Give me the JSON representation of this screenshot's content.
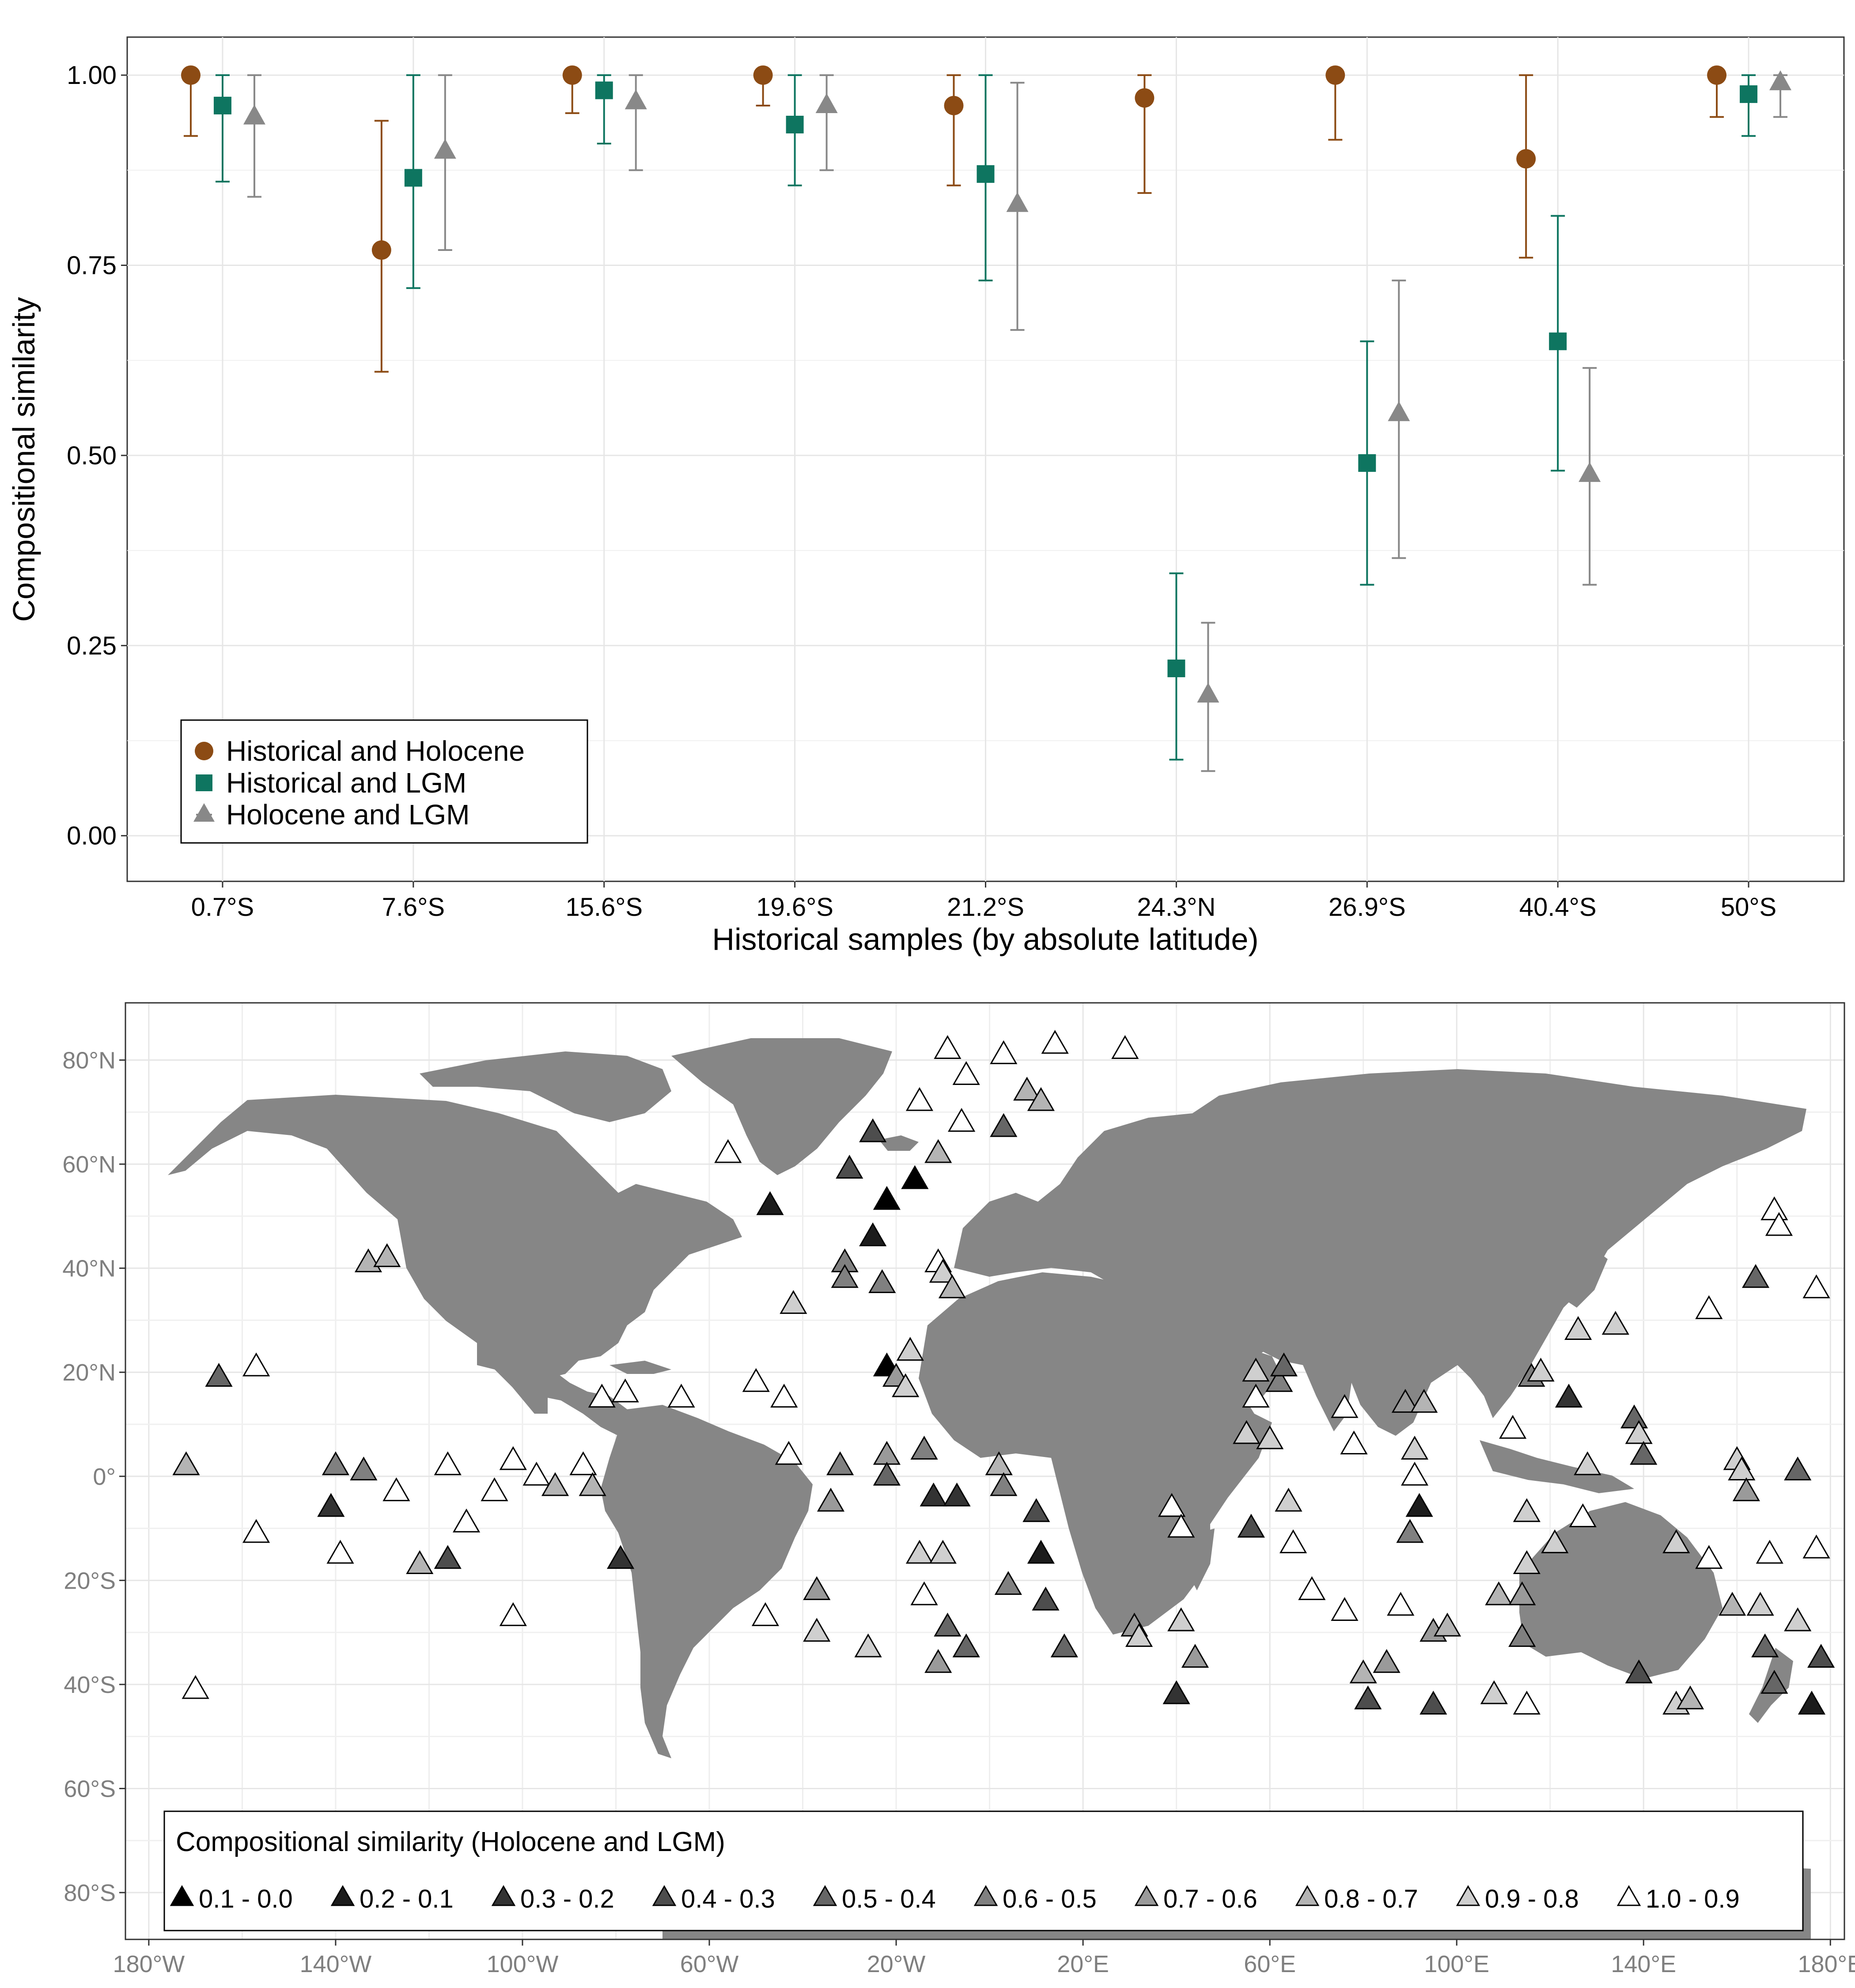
{
  "chart_data": [
    {
      "type": "scatter",
      "subtype": "point-range",
      "xlabel": "Historical samples (by absolute latitude)",
      "ylabel": "Compositional similarity",
      "categories": [
        "0.7°S",
        "7.6°S",
        "15.6°S",
        "19.6°S",
        "21.2°S",
        "24.3°N",
        "26.9°S",
        "40.4°S",
        "50°S"
      ],
      "ylim": [
        -0.06,
        1.05
      ],
      "yticks": [
        "0.00",
        "0.25",
        "0.50",
        "0.75",
        "1.00"
      ],
      "grid": true,
      "legend_position": "bottom-left",
      "series": [
        {
          "name": "Historical and Holocene",
          "marker": "circle",
          "color": "#8c4b14",
          "values": [
            1.0,
            0.77,
            1.0,
            1.0,
            0.96,
            0.97,
            1.0,
            0.89,
            1.0
          ],
          "lower": [
            0.92,
            0.61,
            0.95,
            0.96,
            0.855,
            0.845,
            0.915,
            0.76,
            0.945
          ],
          "upper": [
            1.0,
            0.94,
            1.0,
            1.0,
            1.0,
            1.0,
            1.0,
            1.0,
            1.0
          ]
        },
        {
          "name": "Historical and LGM",
          "marker": "square",
          "color": "#0e7560",
          "values": [
            0.96,
            0.865,
            0.98,
            0.935,
            0.87,
            0.22,
            0.49,
            0.65,
            0.975
          ],
          "lower": [
            0.86,
            0.72,
            0.91,
            0.855,
            0.73,
            0.1,
            0.33,
            0.48,
            0.92
          ],
          "upper": [
            1.0,
            1.0,
            1.0,
            1.0,
            1.0,
            0.345,
            0.65,
            0.815,
            1.0
          ]
        },
        {
          "name": "Holocene and LGM",
          "marker": "triangle",
          "color": "#888888",
          "values": [
            0.945,
            0.9,
            0.965,
            0.96,
            0.83,
            0.185,
            0.555,
            0.475,
            0.99
          ],
          "lower": [
            0.84,
            0.77,
            0.875,
            0.875,
            0.665,
            0.085,
            0.365,
            0.33,
            0.945
          ],
          "upper": [
            1.0,
            1.0,
            1.0,
            1.0,
            0.99,
            0.28,
            0.73,
            0.615,
            1.0
          ]
        }
      ]
    },
    {
      "type": "scatter",
      "subtype": "map",
      "xlim": [
        -185,
        183
      ],
      "ylim": [
        -89,
        91
      ],
      "xticks": [
        "180°W",
        "140°W",
        "100°W",
        "60°W",
        "20°W",
        "20°E",
        "60°E",
        "100°E",
        "140°E",
        "180°E"
      ],
      "xtick_values": [
        -180,
        -140,
        -100,
        -60,
        -20,
        20,
        60,
        100,
        140,
        180
      ],
      "yticks": [
        "80°S",
        "60°S",
        "40°S",
        "20°S",
        "0°",
        "20°N",
        "40°N",
        "60°N",
        "80°N"
      ],
      "ytick_values": [
        -80,
        -60,
        -40,
        -20,
        0,
        20,
        40,
        60,
        80
      ],
      "grid": true,
      "legend_position": "bottom",
      "legend_title": "Compositional similarity (Holocene and LGM)",
      "legend_entries": [
        {
          "label": "0.1 - 0.0",
          "fill": "#000000"
        },
        {
          "label": "0.2 - 0.1",
          "fill": "#1c1c1c"
        },
        {
          "label": "0.3 - 0.2",
          "fill": "#333333"
        },
        {
          "label": "0.4 - 0.3",
          "fill": "#4d4d4d"
        },
        {
          "label": "0.5 - 0.4",
          "fill": "#666666"
        },
        {
          "label": "0.6 - 0.5",
          "fill": "#808080"
        },
        {
          "label": "0.7 - 0.6",
          "fill": "#9a9a9a"
        },
        {
          "label": "0.8 - 0.7",
          "fill": "#b4b4b4"
        },
        {
          "label": "0.9 - 0.8",
          "fill": "#cfcfcf"
        },
        {
          "label": "1.0 - 0.9",
          "fill": "#ffffff"
        }
      ],
      "points": [
        {
          "lon": -172,
          "lat": 2,
          "c": 7
        },
        {
          "lon": -165,
          "lat": 19,
          "c": 4
        },
        {
          "lon": -157,
          "lat": 21,
          "c": 9
        },
        {
          "lon": -170,
          "lat": -41,
          "c": 9
        },
        {
          "lon": -157,
          "lat": -11,
          "c": 9
        },
        {
          "lon": -140,
          "lat": 2,
          "c": 5
        },
        {
          "lon": -141,
          "lat": -6,
          "c": 2
        },
        {
          "lon": -139,
          "lat": -15,
          "c": 9
        },
        {
          "lon": -133,
          "lat": 41,
          "c": 7
        },
        {
          "lon": -129,
          "lat": 42,
          "c": 7
        },
        {
          "lon": -134,
          "lat": 1,
          "c": 5
        },
        {
          "lon": -127,
          "lat": -3,
          "c": 9
        },
        {
          "lon": -122,
          "lat": -17,
          "c": 7
        },
        {
          "lon": -116,
          "lat": 2,
          "c": 9
        },
        {
          "lon": -116,
          "lat": -16,
          "c": 3
        },
        {
          "lon": -112,
          "lat": -9,
          "c": 9
        },
        {
          "lon": -106,
          "lat": -3,
          "c": 9
        },
        {
          "lon": -102,
          "lat": 3,
          "c": 9
        },
        {
          "lon": -102,
          "lat": -27,
          "c": 9
        },
        {
          "lon": -97,
          "lat": 0,
          "c": 9
        },
        {
          "lon": -93,
          "lat": -2,
          "c": 7
        },
        {
          "lon": -87,
          "lat": 2,
          "c": 9
        },
        {
          "lon": -85,
          "lat": -2,
          "c": 7
        },
        {
          "lon": -83,
          "lat": 15,
          "c": 9
        },
        {
          "lon": -78,
          "lat": 16,
          "c": 9
        },
        {
          "lon": -79,
          "lat": -16,
          "c": 2
        },
        {
          "lon": -66,
          "lat": 15,
          "c": 9
        },
        {
          "lon": -56,
          "lat": 62,
          "c": 9
        },
        {
          "lon": -50,
          "lat": 18,
          "c": 9
        },
        {
          "lon": -48,
          "lat": -27,
          "c": 9
        },
        {
          "lon": -47,
          "lat": 52,
          "c": 1
        },
        {
          "lon": -44,
          "lat": 15,
          "c": 9
        },
        {
          "lon": -43,
          "lat": 4,
          "c": 9
        },
        {
          "lon": -42,
          "lat": 33,
          "c": 8
        },
        {
          "lon": -37,
          "lat": -30,
          "c": 8
        },
        {
          "lon": -37,
          "lat": -22,
          "c": 6
        },
        {
          "lon": -34,
          "lat": -5,
          "c": 6
        },
        {
          "lon": -32,
          "lat": 2,
          "c": 5
        },
        {
          "lon": -31,
          "lat": 41,
          "c": 5
        },
        {
          "lon": -31,
          "lat": 38,
          "c": 5
        },
        {
          "lon": -30,
          "lat": 59,
          "c": 3
        },
        {
          "lon": -26,
          "lat": -33,
          "c": 8
        },
        {
          "lon": -25,
          "lat": 66,
          "c": 3
        },
        {
          "lon": -25,
          "lat": 46,
          "c": 1
        },
        {
          "lon": -23,
          "lat": 37,
          "c": 5
        },
        {
          "lon": -22,
          "lat": 53,
          "c": 0
        },
        {
          "lon": -22,
          "lat": 4,
          "c": 6
        },
        {
          "lon": -22,
          "lat": 0,
          "c": 4
        },
        {
          "lon": -22,
          "lat": 21,
          "c": 0
        },
        {
          "lon": -20,
          "lat": 19,
          "c": 6
        },
        {
          "lon": -18,
          "lat": 17,
          "c": 8
        },
        {
          "lon": -17,
          "lat": 24,
          "c": 8
        },
        {
          "lon": -16,
          "lat": 57,
          "c": 0
        },
        {
          "lon": -15,
          "lat": 72,
          "c": 9
        },
        {
          "lon": -14,
          "lat": 5,
          "c": 5
        },
        {
          "lon": -14,
          "lat": -23,
          "c": 9
        },
        {
          "lon": -15,
          "lat": -15,
          "c": 8
        },
        {
          "lon": -11,
          "lat": 62,
          "c": 7
        },
        {
          "lon": -11,
          "lat": -36,
          "c": 6
        },
        {
          "lon": -12,
          "lat": -4,
          "c": 2
        },
        {
          "lon": -11,
          "lat": 41,
          "c": 9
        },
        {
          "lon": -10,
          "lat": 39,
          "c": 8
        },
        {
          "lon": -10,
          "lat": -15,
          "c": 8
        },
        {
          "lon": -9,
          "lat": 82,
          "c": 9
        },
        {
          "lon": -9,
          "lat": -29,
          "c": 4
        },
        {
          "lon": -8,
          "lat": 36,
          "c": 7
        },
        {
          "lon": -7,
          "lat": -4,
          "c": 2
        },
        {
          "lon": -6,
          "lat": 68,
          "c": 9
        },
        {
          "lon": -5,
          "lat": 77,
          "c": 9
        },
        {
          "lon": -5,
          "lat": -33,
          "c": 4
        },
        {
          "lon": 3,
          "lat": 81,
          "c": 9
        },
        {
          "lon": 3,
          "lat": 67,
          "c": 4
        },
        {
          "lon": 2,
          "lat": 2,
          "c": 7
        },
        {
          "lon": 3,
          "lat": -2,
          "c": 5
        },
        {
          "lon": 4,
          "lat": -21,
          "c": 5
        },
        {
          "lon": 8,
          "lat": 74,
          "c": 7
        },
        {
          "lon": 11,
          "lat": 72,
          "c": 7
        },
        {
          "lon": 10,
          "lat": -7,
          "c": 3
        },
        {
          "lon": 11,
          "lat": -15,
          "c": 1
        },
        {
          "lon": 12,
          "lat": -24,
          "c": 3
        },
        {
          "lon": 14,
          "lat": 83,
          "c": 9
        },
        {
          "lon": 16,
          "lat": -33,
          "c": 4
        },
        {
          "lon": 29,
          "lat": 82,
          "c": 9
        },
        {
          "lon": 31,
          "lat": -29,
          "c": 6
        },
        {
          "lon": 32,
          "lat": -31,
          "c": 8
        },
        {
          "lon": 39,
          "lat": -6,
          "c": 9
        },
        {
          "lon": 41,
          "lat": -10,
          "c": 9
        },
        {
          "lon": 40,
          "lat": -42,
          "c": 2
        },
        {
          "lon": 41,
          "lat": -28,
          "c": 8
        },
        {
          "lon": 44,
          "lat": -35,
          "c": 6
        },
        {
          "lon": 56,
          "lat": -10,
          "c": 3
        },
        {
          "lon": 57,
          "lat": 15,
          "c": 9
        },
        {
          "lon": 57,
          "lat": 20,
          "c": 8
        },
        {
          "lon": 55,
          "lat": 8,
          "c": 8
        },
        {
          "lon": 60,
          "lat": 7,
          "c": 8
        },
        {
          "lon": 62,
          "lat": 18,
          "c": 5
        },
        {
          "lon": 63,
          "lat": 21,
          "c": 4
        },
        {
          "lon": 64,
          "lat": -5,
          "c": 8
        },
        {
          "lon": 65,
          "lat": -13,
          "c": 9
        },
        {
          "lon": 69,
          "lat": -22,
          "c": 9
        },
        {
          "lon": 76,
          "lat": 13,
          "c": 9
        },
        {
          "lon": 76,
          "lat": -26,
          "c": 9
        },
        {
          "lon": 78,
          "lat": 6,
          "c": 9
        },
        {
          "lon": 80,
          "lat": -38,
          "c": 7
        },
        {
          "lon": 81,
          "lat": -43,
          "c": 3
        },
        {
          "lon": 85,
          "lat": -36,
          "c": 6
        },
        {
          "lon": 88,
          "lat": -25,
          "c": 9
        },
        {
          "lon": 89,
          "lat": 14,
          "c": 6
        },
        {
          "lon": 90,
          "lat": -11,
          "c": 5
        },
        {
          "lon": 91,
          "lat": 5,
          "c": 8
        },
        {
          "lon": 91,
          "lat": 0,
          "c": 9
        },
        {
          "lon": 92,
          "lat": -6,
          "c": 1
        },
        {
          "lon": 93,
          "lat": 14,
          "c": 7
        },
        {
          "lon": 95,
          "lat": -30,
          "c": 6
        },
        {
          "lon": 95,
          "lat": -44,
          "c": 3
        },
        {
          "lon": 98,
          "lat": -29,
          "c": 7
        },
        {
          "lon": 108,
          "lat": -42,
          "c": 8
        },
        {
          "lon": 109,
          "lat": -23,
          "c": 7
        },
        {
          "lon": 112,
          "lat": 9,
          "c": 9
        },
        {
          "lon": 115,
          "lat": -44,
          "c": 9
        },
        {
          "lon": 114,
          "lat": -31,
          "c": 5
        },
        {
          "lon": 114,
          "lat": -23,
          "c": 6
        },
        {
          "lon": 115,
          "lat": -7,
          "c": 8
        },
        {
          "lon": 115,
          "lat": -17,
          "c": 8
        },
        {
          "lon": 116,
          "lat": 19,
          "c": 5
        },
        {
          "lon": 118,
          "lat": 20,
          "c": 8
        },
        {
          "lon": 121,
          "lat": -13,
          "c": 8
        },
        {
          "lon": 124,
          "lat": 15,
          "c": 2
        },
        {
          "lon": 126,
          "lat": 28,
          "c": 8
        },
        {
          "lon": 127,
          "lat": -8,
          "c": 9
        },
        {
          "lon": 128,
          "lat": 2,
          "c": 8
        },
        {
          "lon": 134,
          "lat": 29,
          "c": 8
        },
        {
          "lon": 138,
          "lat": 11,
          "c": 4
        },
        {
          "lon": 139,
          "lat": 8,
          "c": 8
        },
        {
          "lon": 140,
          "lat": 4,
          "c": 4
        },
        {
          "lon": 139,
          "lat": -38,
          "c": 3
        },
        {
          "lon": 147,
          "lat": -13,
          "c": 8
        },
        {
          "lon": 147,
          "lat": -44,
          "c": 8
        },
        {
          "lon": 150,
          "lat": -43,
          "c": 7
        },
        {
          "lon": 154,
          "lat": 32,
          "c": 9
        },
        {
          "lon": 154,
          "lat": -16,
          "c": 9
        },
        {
          "lon": 159,
          "lat": -25,
          "c": 7
        },
        {
          "lon": 160,
          "lat": 3,
          "c": 8
        },
        {
          "lon": 161,
          "lat": 1,
          "c": 8
        },
        {
          "lon": 162,
          "lat": -3,
          "c": 6
        },
        {
          "lon": 164,
          "lat": 38,
          "c": 4
        },
        {
          "lon": 165,
          "lat": -25,
          "c": 8
        },
        {
          "lon": 166,
          "lat": -33,
          "c": 4
        },
        {
          "lon": 167,
          "lat": -15,
          "c": 9
        },
        {
          "lon": 168,
          "lat": 51,
          "c": 9
        },
        {
          "lon": 169,
          "lat": 48,
          "c": 9
        },
        {
          "lon": 168,
          "lat": -40,
          "c": 4
        },
        {
          "lon": 173,
          "lat": 1,
          "c": 4
        },
        {
          "lon": 173,
          "lat": -28,
          "c": 8
        },
        {
          "lon": 177,
          "lat": 36,
          "c": 9
        },
        {
          "lon": 177,
          "lat": -14,
          "c": 9
        },
        {
          "lon": 178,
          "lat": -35,
          "c": 3
        },
        {
          "lon": 176,
          "lat": -44,
          "c": 1
        }
      ]
    }
  ]
}
